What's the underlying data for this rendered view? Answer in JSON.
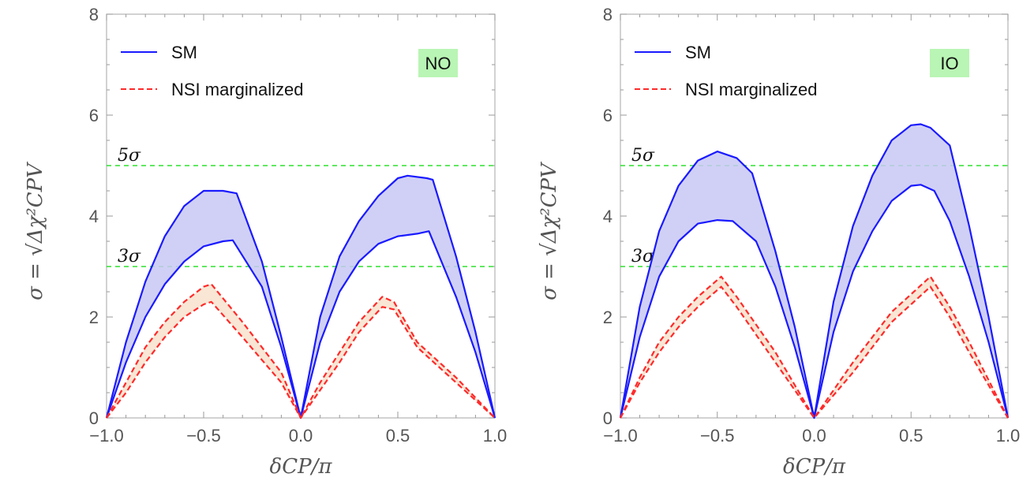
{
  "chart_data": [
    {
      "type": "line",
      "ordering_label": "NO",
      "xlabel": "δCP/π",
      "ylabel": "σ = √Δχ²CPV",
      "xlim": [
        -1.0,
        1.0
      ],
      "ylim": [
        0,
        8
      ],
      "x_ticks": [
        "−1.0",
        "−0.5",
        "0.0",
        "0.5",
        "1.0"
      ],
      "y_ticks": [
        "0",
        "2",
        "4",
        "6",
        "8"
      ],
      "legend": {
        "position": "top-left",
        "entries": [
          "SM",
          "NSI marginalized"
        ]
      },
      "reference_lines": [
        {
          "y": 5,
          "label": "5σ"
        },
        {
          "y": 3,
          "label": "3σ"
        }
      ],
      "series": [
        {
          "name": "SM",
          "style": "solid",
          "color": "#1a1aff",
          "fill": "#c8c8f5",
          "upper": [
            [
              -1.0,
              0
            ],
            [
              -0.9,
              1.5
            ],
            [
              -0.8,
              2.7
            ],
            [
              -0.7,
              3.6
            ],
            [
              -0.6,
              4.2
            ],
            [
              -0.5,
              4.5
            ],
            [
              -0.4,
              4.5
            ],
            [
              -0.33,
              4.45
            ],
            [
              -0.2,
              3.1
            ],
            [
              -0.1,
              1.6
            ],
            [
              0.0,
              0
            ],
            [
              0.1,
              2.0
            ],
            [
              0.2,
              3.2
            ],
            [
              0.3,
              3.9
            ],
            [
              0.4,
              4.4
            ],
            [
              0.5,
              4.75
            ],
            [
              0.55,
              4.8
            ],
            [
              0.65,
              4.75
            ],
            [
              0.68,
              4.72
            ],
            [
              0.8,
              3.2
            ],
            [
              0.9,
              1.7
            ],
            [
              1.0,
              0
            ]
          ],
          "lower": [
            [
              -1.0,
              0
            ],
            [
              -0.9,
              1.1
            ],
            [
              -0.8,
              2.0
            ],
            [
              -0.7,
              2.65
            ],
            [
              -0.6,
              3.1
            ],
            [
              -0.5,
              3.4
            ],
            [
              -0.4,
              3.5
            ],
            [
              -0.35,
              3.52
            ],
            [
              -0.2,
              2.6
            ],
            [
              -0.1,
              1.4
            ],
            [
              0.0,
              0
            ],
            [
              0.1,
              1.5
            ],
            [
              0.2,
              2.5
            ],
            [
              0.3,
              3.1
            ],
            [
              0.4,
              3.45
            ],
            [
              0.5,
              3.6
            ],
            [
              0.6,
              3.65
            ],
            [
              0.66,
              3.7
            ],
            [
              0.8,
              2.4
            ],
            [
              0.9,
              1.3
            ],
            [
              1.0,
              0
            ]
          ]
        },
        {
          "name": "NSI marginalized",
          "style": "dashed",
          "color": "#ff2a2a",
          "fill": "#f8e2cc",
          "upper": [
            [
              -1.0,
              0
            ],
            [
              -0.9,
              0.7
            ],
            [
              -0.8,
              1.4
            ],
            [
              -0.7,
              1.9
            ],
            [
              -0.6,
              2.3
            ],
            [
              -0.5,
              2.6
            ],
            [
              -0.46,
              2.65
            ],
            [
              -0.3,
              1.9
            ],
            [
              -0.1,
              0.9
            ],
            [
              0.0,
              0
            ],
            [
              0.1,
              0.7
            ],
            [
              0.2,
              1.3
            ],
            [
              0.3,
              1.9
            ],
            [
              0.42,
              2.4
            ],
            [
              0.48,
              2.3
            ],
            [
              0.6,
              1.5
            ],
            [
              0.8,
              0.8
            ],
            [
              1.0,
              0
            ]
          ],
          "lower": [
            [
              -1.0,
              0
            ],
            [
              -0.9,
              0.5
            ],
            [
              -0.8,
              1.1
            ],
            [
              -0.7,
              1.6
            ],
            [
              -0.6,
              2.0
            ],
            [
              -0.5,
              2.25
            ],
            [
              -0.46,
              2.3
            ],
            [
              -0.3,
              1.6
            ],
            [
              -0.1,
              0.7
            ],
            [
              0.0,
              0
            ],
            [
              0.1,
              0.55
            ],
            [
              0.2,
              1.1
            ],
            [
              0.3,
              1.7
            ],
            [
              0.42,
              2.2
            ],
            [
              0.48,
              2.15
            ],
            [
              0.6,
              1.4
            ],
            [
              0.8,
              0.7
            ],
            [
              1.0,
              0
            ]
          ]
        }
      ]
    },
    {
      "type": "line",
      "ordering_label": "IO",
      "xlabel": "δCP/π",
      "ylabel": "σ = √Δχ²CPV",
      "xlim": [
        -1.0,
        1.0
      ],
      "ylim": [
        0,
        8
      ],
      "x_ticks": [
        "−1.0",
        "−0.5",
        "0.0",
        "0.5",
        "1.0"
      ],
      "y_ticks": [
        "0",
        "2",
        "4",
        "6",
        "8"
      ],
      "legend": {
        "position": "top-left",
        "entries": [
          "SM",
          "NSI marginalized"
        ]
      },
      "reference_lines": [
        {
          "y": 5,
          "label": "5σ"
        },
        {
          "y": 3,
          "label": "3σ"
        }
      ],
      "series": [
        {
          "name": "SM",
          "style": "solid",
          "color": "#1a1aff",
          "fill": "#c8c8f5",
          "upper": [
            [
              -1.0,
              0
            ],
            [
              -0.9,
              2.2
            ],
            [
              -0.8,
              3.7
            ],
            [
              -0.7,
              4.6
            ],
            [
              -0.6,
              5.1
            ],
            [
              -0.5,
              5.28
            ],
            [
              -0.4,
              5.15
            ],
            [
              -0.32,
              4.85
            ],
            [
              -0.2,
              3.3
            ],
            [
              -0.1,
              1.8
            ],
            [
              0.0,
              0
            ],
            [
              0.1,
              2.3
            ],
            [
              0.2,
              3.8
            ],
            [
              0.3,
              4.8
            ],
            [
              0.4,
              5.5
            ],
            [
              0.5,
              5.8
            ],
            [
              0.55,
              5.82
            ],
            [
              0.6,
              5.75
            ],
            [
              0.7,
              5.4
            ],
            [
              0.8,
              3.8
            ],
            [
              0.9,
              2.0
            ],
            [
              1.0,
              0
            ]
          ],
          "lower": [
            [
              -1.0,
              0
            ],
            [
              -0.9,
              1.6
            ],
            [
              -0.8,
              2.8
            ],
            [
              -0.7,
              3.5
            ],
            [
              -0.6,
              3.85
            ],
            [
              -0.5,
              3.92
            ],
            [
              -0.42,
              3.9
            ],
            [
              -0.3,
              3.5
            ],
            [
              -0.2,
              2.6
            ],
            [
              -0.1,
              1.4
            ],
            [
              0.0,
              0
            ],
            [
              0.1,
              1.7
            ],
            [
              0.2,
              2.9
            ],
            [
              0.3,
              3.7
            ],
            [
              0.4,
              4.3
            ],
            [
              0.5,
              4.6
            ],
            [
              0.55,
              4.62
            ],
            [
              0.62,
              4.5
            ],
            [
              0.7,
              3.9
            ],
            [
              0.8,
              2.8
            ],
            [
              0.9,
              1.5
            ],
            [
              1.0,
              0
            ]
          ]
        },
        {
          "name": "NSI marginalized",
          "style": "dashed",
          "color": "#ff2a2a",
          "fill": "#f8e2cc",
          "upper": [
            [
              -1.0,
              0
            ],
            [
              -0.9,
              0.8
            ],
            [
              -0.8,
              1.5
            ],
            [
              -0.7,
              2.0
            ],
            [
              -0.6,
              2.4
            ],
            [
              -0.48,
              2.8
            ],
            [
              -0.4,
              2.4
            ],
            [
              -0.2,
              1.3
            ],
            [
              0.0,
              0
            ],
            [
              0.2,
              1.1
            ],
            [
              0.4,
              2.1
            ],
            [
              0.6,
              2.8
            ],
            [
              0.7,
              2.2
            ],
            [
              0.8,
              1.5
            ],
            [
              1.0,
              0
            ]
          ],
          "lower": [
            [
              -1.0,
              0
            ],
            [
              -0.9,
              0.7
            ],
            [
              -0.8,
              1.3
            ],
            [
              -0.7,
              1.8
            ],
            [
              -0.6,
              2.2
            ],
            [
              -0.48,
              2.6
            ],
            [
              -0.4,
              2.2
            ],
            [
              -0.2,
              1.1
            ],
            [
              0.0,
              0
            ],
            [
              0.2,
              0.9
            ],
            [
              0.4,
              1.9
            ],
            [
              0.6,
              2.6
            ],
            [
              0.7,
              2.0
            ],
            [
              0.8,
              1.3
            ],
            [
              1.0,
              0
            ]
          ]
        }
      ]
    }
  ]
}
